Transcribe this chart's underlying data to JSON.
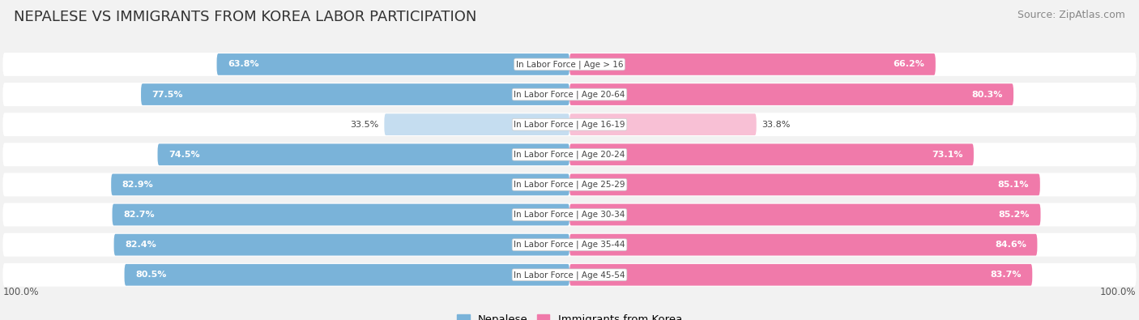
{
  "title": "NEPALESE VS IMMIGRANTS FROM KOREA LABOR PARTICIPATION",
  "source": "Source: ZipAtlas.com",
  "categories": [
    "In Labor Force | Age > 16",
    "In Labor Force | Age 20-64",
    "In Labor Force | Age 16-19",
    "In Labor Force | Age 20-24",
    "In Labor Force | Age 25-29",
    "In Labor Force | Age 30-34",
    "In Labor Force | Age 35-44",
    "In Labor Force | Age 45-54"
  ],
  "nepalese": [
    63.8,
    77.5,
    33.5,
    74.5,
    82.9,
    82.7,
    82.4,
    80.5
  ],
  "korea": [
    66.2,
    80.3,
    33.8,
    73.1,
    85.1,
    85.2,
    84.6,
    83.7
  ],
  "nepalese_color_full": "#7ab3d9",
  "nepalese_color_light": "#c5ddf0",
  "korea_color_full": "#f07aaa",
  "korea_color_light": "#f8c0d5",
  "background_color": "#f2f2f2",
  "row_bg_color": "#e8e8e8",
  "center_label_color": "#444444",
  "full_threshold": 50.0,
  "bar_height": 0.72,
  "legend_nepalese": "Nepalese",
  "legend_korea": "Immigrants from Korea",
  "xlim": 103,
  "title_fontsize": 13,
  "source_fontsize": 9,
  "label_fontsize": 8,
  "cat_fontsize": 7.5
}
